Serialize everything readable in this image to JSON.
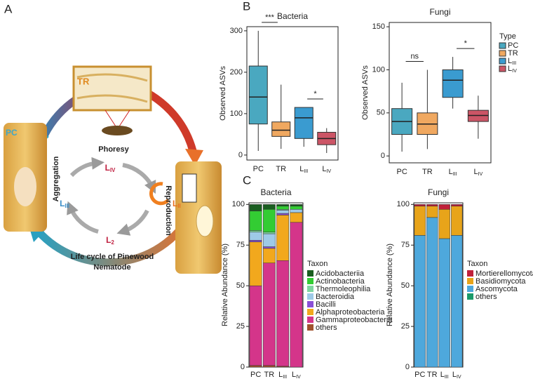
{
  "figure": {
    "panels": {
      "a": "A",
      "b": "B",
      "c": "C"
    },
    "diagram": {
      "tr": "TR",
      "phoresy": "Phoresy",
      "pc": "PC",
      "aggregation": "Aggregation",
      "reproduction": "Reproduction",
      "stages": [
        "LIV",
        "LII",
        "L2",
        "LIII"
      ],
      "caption_lines": [
        "Life cycle of Pinewood",
        "Nematode"
      ]
    }
  },
  "chart_data": [
    {
      "type": "box",
      "title": "Bacteria",
      "ylabel": "Observed ASVs",
      "categories": [
        "PC",
        "TR",
        "LIII",
        "LIV"
      ],
      "colors": [
        "#4aa8c0",
        "#f0a860",
        "#3a9bd0",
        "#cc5566"
      ],
      "min": [
        10,
        15,
        20,
        5
      ],
      "q1": [
        75,
        45,
        40,
        25
      ],
      "median": [
        140,
        60,
        90,
        40
      ],
      "q3": [
        215,
        80,
        115,
        55
      ],
      "max": [
        300,
        170,
        115,
        65
      ],
      "ylim": [
        -12,
        310
      ],
      "yticks": [
        0,
        100,
        200,
        300
      ],
      "annotations": [
        "***",
        "*"
      ]
    },
    {
      "type": "box",
      "title": "Fungi",
      "ylabel": "Observed ASVs",
      "categories": [
        "PC",
        "TR",
        "LIII",
        "LIV"
      ],
      "colors": [
        "#4aa8c0",
        "#f0a860",
        "#3a9bd0",
        "#cc5566"
      ],
      "min": [
        5,
        8,
        55,
        20
      ],
      "q1": [
        25,
        25,
        68,
        40
      ],
      "median": [
        40,
        37,
        88,
        47
      ],
      "q3": [
        55,
        50,
        100,
        53
      ],
      "max": [
        85,
        100,
        115,
        70
      ],
      "ylim": [
        -8,
        155
      ],
      "yticks": [
        0,
        50,
        100,
        150
      ],
      "annotations": [
        "ns",
        "*"
      ],
      "legend_title": "Type"
    },
    {
      "type": "stacked_bar",
      "title": "Bacteria",
      "ylabel": "Relative Abundance (%)",
      "legend_title": "Taxon",
      "categories": [
        "PC",
        "TR",
        "LIII",
        "LIV"
      ],
      "series": [
        {
          "name": "Acidobacteriia",
          "color": "#1a5e20",
          "values": [
            4,
            3,
            1,
            1
          ]
        },
        {
          "name": "Actinobacteria",
          "color": "#33cc33",
          "values": [
            12,
            14,
            2,
            2
          ]
        },
        {
          "name": "Thermoleophilia",
          "color": "#7fd6a0",
          "values": [
            1,
            1,
            0.5,
            0
          ]
        },
        {
          "name": "Bacteroidia",
          "color": "#9ecae8",
          "values": [
            5,
            8,
            2,
            2
          ]
        },
        {
          "name": "Bacilli",
          "color": "#8a4fd6",
          "values": [
            1,
            1,
            1,
            0
          ]
        },
        {
          "name": "Alphaproteobacteria",
          "color": "#f2a81d",
          "values": [
            27,
            9,
            28,
            6
          ]
        },
        {
          "name": "Gammaproteobacteria",
          "color": "#d4358a",
          "values": [
            49,
            63,
            65,
            89
          ]
        },
        {
          "name": "others",
          "color": "#a0522d",
          "values": [
            1,
            1,
            0.5,
            0
          ]
        }
      ],
      "ylim": [
        0,
        101
      ],
      "yticks": [
        0,
        25,
        50,
        75,
        100
      ]
    },
    {
      "type": "stacked_bar",
      "title": "Fungi",
      "ylabel": "Relative Abundance (%)",
      "legend_title": "Taxon",
      "categories": [
        "PC",
        "TR",
        "LIII",
        "LIV"
      ],
      "series": [
        {
          "name": "Mortierellomycota",
          "color": "#c0203a",
          "values": [
            1,
            1,
            3,
            1
          ]
        },
        {
          "name": "Basidiomycota",
          "color": "#e8a41a",
          "values": [
            18,
            7,
            18,
            18
          ]
        },
        {
          "name": "Ascomycota",
          "color": "#4ea8dc",
          "values": [
            81,
            92,
            79,
            81
          ]
        },
        {
          "name": "others",
          "color": "#1a9a6a",
          "values": [
            0,
            0,
            0,
            0
          ]
        }
      ],
      "ylim": [
        0,
        101
      ],
      "yticks": [
        0,
        25,
        50,
        75,
        100
      ]
    }
  ]
}
